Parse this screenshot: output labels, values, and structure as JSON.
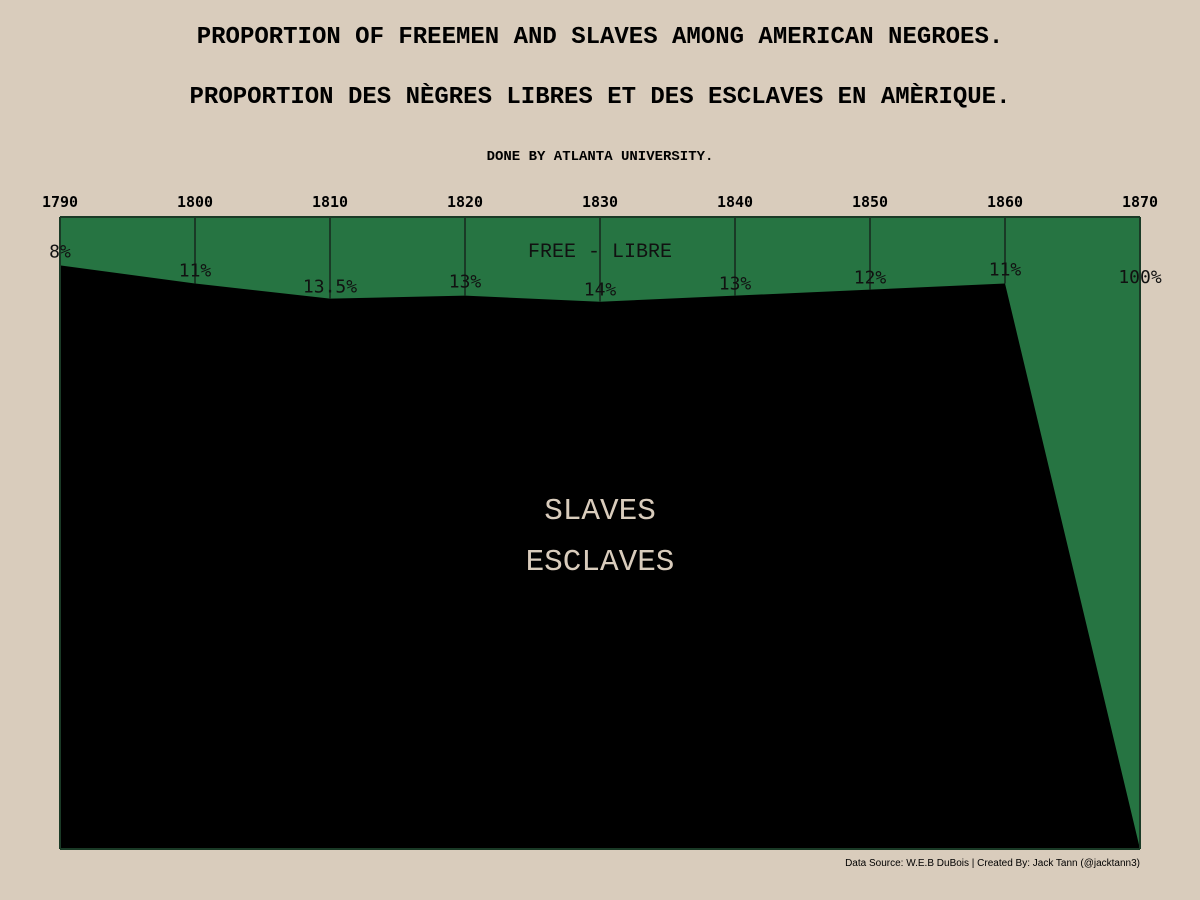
{
  "title": "PROPORTION OF FREEMEN AND SLAVES AMONG AMERICAN NEGROES.",
  "title_fr": "PROPORTION DES NÈGRES LIBRES ET DES ESCLAVES EN AMÈRIQUE.",
  "subtitle": "DONE BY ATLANTA UNIVERSITY.",
  "credit": "Data Source: W.E.B DuBois | Created By: Jack Tann (@jacktann3)",
  "colors": {
    "background": "#d9ccbc",
    "free": "#267442",
    "slaves": "#000000",
    "grid": "#1a3a26",
    "slave_text": "#d9ccbc"
  },
  "chart_data": {
    "type": "area",
    "x": [
      1790,
      1800,
      1810,
      1820,
      1830,
      1840,
      1850,
      1860,
      1870
    ],
    "series": [
      {
        "name": "FREE - LIBRE",
        "values": [
          8,
          11,
          13.5,
          13,
          14,
          13,
          12,
          11,
          100
        ]
      },
      {
        "name": "SLAVES ESCLAVES",
        "values": [
          92,
          89,
          86.5,
          87,
          86,
          87,
          88,
          89,
          0
        ]
      }
    ],
    "data_labels": [
      "8%",
      "11%",
      "13.5%",
      "13%",
      "14%",
      "13%",
      "12%",
      "11%",
      "100%"
    ],
    "free_label": "FREE - LIBRE",
    "slave_label_line1": "SLAVES",
    "slave_label_line2": "ESCLAVES",
    "xlim": [
      1790,
      1870
    ],
    "ylim": [
      0,
      100
    ],
    "x_axis_position": "top",
    "grid": true,
    "legend": "none"
  }
}
